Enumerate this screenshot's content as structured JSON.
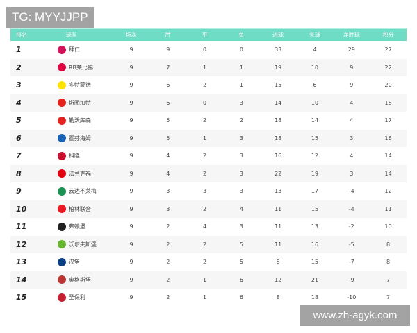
{
  "watermark_top": "TG: MYYJJPP",
  "watermark_bottom": "www.zh-agyk.com",
  "headers": [
    "排名",
    "球队",
    "场次",
    "胜",
    "平",
    "负",
    "进球",
    "失球",
    "净胜球",
    "积分"
  ],
  "colors": {
    "header_bg": "#6fdcc6",
    "row_alt": "#f6f6f6"
  },
  "rows": [
    {
      "rank": "1",
      "team": "拜仁",
      "logo_color": "#d4145a",
      "played": "9",
      "won": "9",
      "drawn": "0",
      "lost": "0",
      "gf": "33",
      "ga": "4",
      "gd": "29",
      "pts": "27"
    },
    {
      "rank": "2",
      "team": "RB莱比锡",
      "logo_color": "#dd0741",
      "played": "9",
      "won": "7",
      "drawn": "1",
      "lost": "1",
      "gf": "19",
      "ga": "10",
      "gd": "9",
      "pts": "22"
    },
    {
      "rank": "3",
      "team": "多特蒙德",
      "logo_color": "#fde100",
      "played": "9",
      "won": "6",
      "drawn": "2",
      "lost": "1",
      "gf": "15",
      "ga": "6",
      "gd": "9",
      "pts": "20"
    },
    {
      "rank": "4",
      "team": "斯图加特",
      "logo_color": "#e32219",
      "played": "9",
      "won": "6",
      "drawn": "0",
      "lost": "3",
      "gf": "14",
      "ga": "10",
      "gd": "4",
      "pts": "18"
    },
    {
      "rank": "5",
      "team": "勒沃库森",
      "logo_color": "#e32221",
      "played": "9",
      "won": "5",
      "drawn": "2",
      "lost": "2",
      "gf": "18",
      "ga": "14",
      "gd": "4",
      "pts": "17"
    },
    {
      "rank": "6",
      "team": "霍芬海姆",
      "logo_color": "#1961b5",
      "played": "9",
      "won": "5",
      "drawn": "1",
      "lost": "3",
      "gf": "18",
      "ga": "15",
      "gd": "3",
      "pts": "16"
    },
    {
      "rank": "7",
      "team": "科隆",
      "logo_color": "#c8102e",
      "played": "9",
      "won": "4",
      "drawn": "2",
      "lost": "3",
      "gf": "16",
      "ga": "12",
      "gd": "4",
      "pts": "14"
    },
    {
      "rank": "8",
      "team": "法兰克福",
      "logo_color": "#e1000f",
      "played": "9",
      "won": "4",
      "drawn": "2",
      "lost": "3",
      "gf": "22",
      "ga": "19",
      "gd": "3",
      "pts": "14"
    },
    {
      "rank": "9",
      "team": "云达不莱梅",
      "logo_color": "#1d9053",
      "played": "9",
      "won": "3",
      "drawn": "3",
      "lost": "3",
      "gf": "13",
      "ga": "17",
      "gd": "-4",
      "pts": "12"
    },
    {
      "rank": "10",
      "team": "柏林联合",
      "logo_color": "#eb1923",
      "played": "9",
      "won": "3",
      "drawn": "2",
      "lost": "4",
      "gf": "11",
      "ga": "15",
      "gd": "-4",
      "pts": "11"
    },
    {
      "rank": "11",
      "team": "弗赖堡",
      "logo_color": "#222222",
      "played": "9",
      "won": "2",
      "drawn": "4",
      "lost": "3",
      "gf": "11",
      "ga": "13",
      "gd": "-2",
      "pts": "10"
    },
    {
      "rank": "12",
      "team": "沃尔夫斯堡",
      "logo_color": "#65b32e",
      "played": "9",
      "won": "2",
      "drawn": "2",
      "lost": "5",
      "gf": "11",
      "ga": "16",
      "gd": "-5",
      "pts": "8"
    },
    {
      "rank": "13",
      "team": "汉堡",
      "logo_color": "#0a3f86",
      "played": "9",
      "won": "2",
      "drawn": "2",
      "lost": "5",
      "gf": "8",
      "ga": "15",
      "gd": "-7",
      "pts": "8"
    },
    {
      "rank": "14",
      "team": "奥格斯堡",
      "logo_color": "#ba3733",
      "played": "9",
      "won": "2",
      "drawn": "1",
      "lost": "6",
      "gf": "12",
      "ga": "21",
      "gd": "-9",
      "pts": "7"
    },
    {
      "rank": "15",
      "team": "圣保利",
      "logo_color": "#c4202f",
      "played": "9",
      "won": "2",
      "drawn": "1",
      "lost": "6",
      "gf": "8",
      "ga": "18",
      "gd": "-10",
      "pts": "7"
    }
  ]
}
